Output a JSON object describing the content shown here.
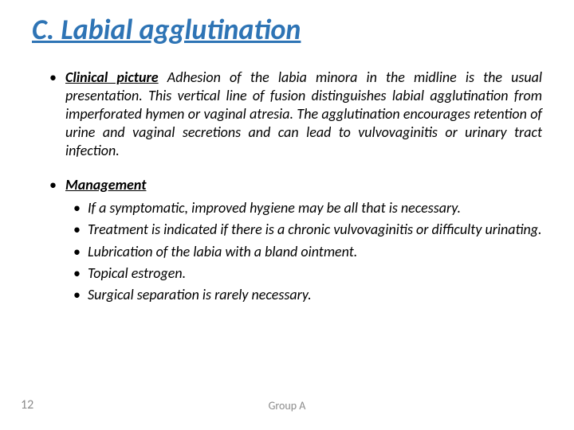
{
  "colors": {
    "title_color": "#2e74b5",
    "body_text_color": "#000000",
    "footer_color": "#8b8b8b",
    "background": "#ffffff"
  },
  "title": "C. Labial agglutination",
  "sections": [
    {
      "heading": "Clinical picture",
      "body": " Adhesion of the labia minora in the midline is the usual presentation. This vertical line of fusion distinguishes labial agglutination from imperforated hymen or vaginal atresia. The agglutination encourages retention of urine and vaginal secretions and can lead to vulvovaginitis or urinary tract infection."
    },
    {
      "heading": "Management",
      "body": "",
      "sub": [
        "If a symptomatic, improved hygiene may be all that is necessary.",
        "Treatment is indicated if there is a chronic vulvovaginitis or difficulty urinating.",
        "Lubrication of the labia with a bland ointment.",
        "Topical estrogen.",
        "Surgical separation is rarely necessary."
      ]
    }
  ],
  "page_number": "12",
  "footer": "Group A"
}
